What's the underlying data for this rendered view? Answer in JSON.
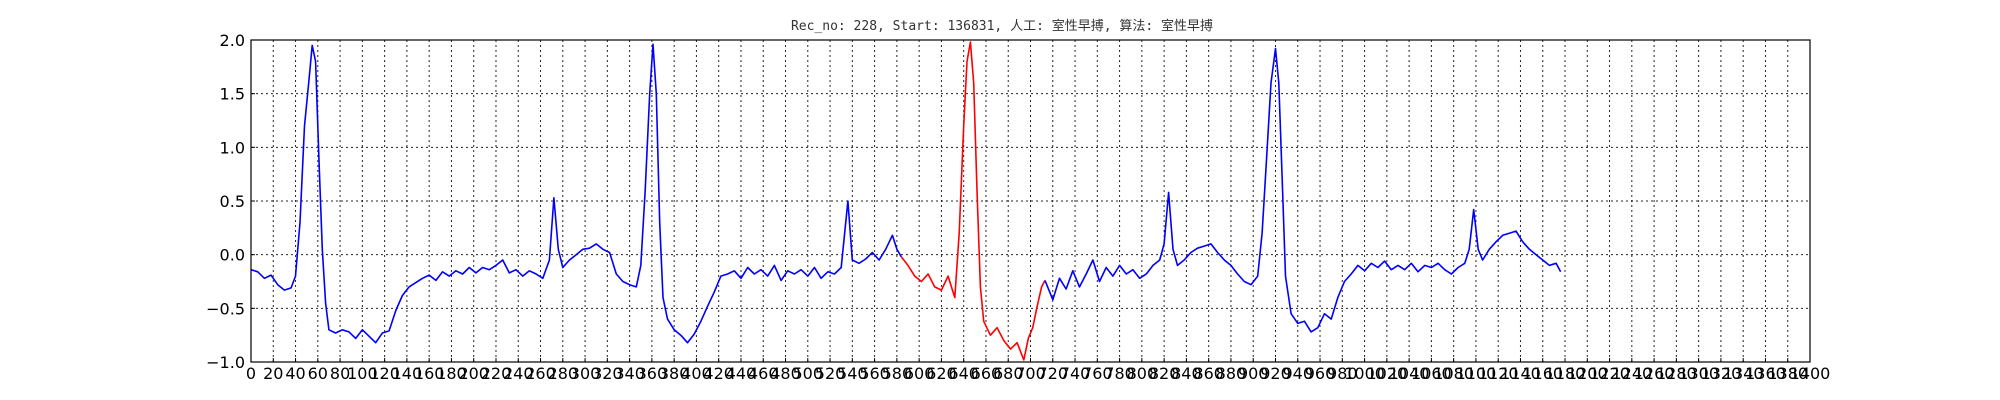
{
  "chart_data": {
    "type": "line",
    "title": "Rec_no: 228, Start: 136831, 人工: 室性早搏, 算法: 室性早搏",
    "xlim": [
      0,
      1400
    ],
    "ylim": [
      -1.0,
      2.0
    ],
    "grid": true,
    "y_ticks": [
      -1.0,
      -0.5,
      0.0,
      0.5,
      1.0,
      1.5,
      2.0
    ],
    "y_tick_labels": [
      "−1.0",
      "−0.5",
      "0.0",
      "0.5",
      "1.0",
      "1.5",
      "2.0"
    ],
    "x_tick_step": 20,
    "x_ticks_shown_from": 0,
    "x_ticks_shown_to": 1400,
    "x_tick_labels_to": 1400,
    "series": [
      {
        "color": "#0000ff",
        "points": [
          [
            0,
            -0.14
          ],
          [
            6,
            -0.16
          ],
          [
            12,
            -0.22
          ],
          [
            18,
            -0.19
          ],
          [
            24,
            -0.28
          ],
          [
            30,
            -0.33
          ],
          [
            36,
            -0.31
          ],
          [
            40,
            -0.2
          ],
          [
            44,
            0.3
          ],
          [
            48,
            1.2
          ],
          [
            52,
            1.62
          ],
          [
            55,
            1.95
          ],
          [
            58,
            1.8
          ],
          [
            61,
            0.9
          ],
          [
            64,
            0.05
          ],
          [
            67,
            -0.45
          ],
          [
            70,
            -0.7
          ],
          [
            76,
            -0.73
          ],
          [
            82,
            -0.7
          ],
          [
            88,
            -0.72
          ],
          [
            94,
            -0.78
          ],
          [
            100,
            -0.7
          ],
          [
            106,
            -0.76
          ],
          [
            112,
            -0.82
          ],
          [
            118,
            -0.73
          ],
          [
            124,
            -0.71
          ],
          [
            130,
            -0.52
          ],
          [
            136,
            -0.38
          ],
          [
            142,
            -0.3
          ],
          [
            148,
            -0.26
          ],
          [
            154,
            -0.22
          ],
          [
            160,
            -0.19
          ],
          [
            166,
            -0.24
          ],
          [
            172,
            -0.16
          ],
          [
            178,
            -0.2
          ],
          [
            184,
            -0.15
          ],
          [
            190,
            -0.18
          ],
          [
            196,
            -0.12
          ],
          [
            202,
            -0.17
          ],
          [
            208,
            -0.12
          ],
          [
            214,
            -0.14
          ],
          [
            220,
            -0.1
          ],
          [
            226,
            -0.05
          ],
          [
            232,
            -0.17
          ],
          [
            238,
            -0.14
          ],
          [
            244,
            -0.2
          ],
          [
            250,
            -0.15
          ],
          [
            256,
            -0.18
          ],
          [
            262,
            -0.22
          ],
          [
            268,
            -0.05
          ],
          [
            272,
            0.53
          ],
          [
            276,
            0.05
          ],
          [
            280,
            -0.12
          ],
          [
            286,
            -0.05
          ],
          [
            292,
            0.0
          ],
          [
            298,
            0.05
          ],
          [
            304,
            0.06
          ],
          [
            310,
            0.1
          ],
          [
            316,
            0.05
          ],
          [
            322,
            0.02
          ],
          [
            328,
            -0.18
          ],
          [
            334,
            -0.25
          ],
          [
            340,
            -0.28
          ],
          [
            346,
            -0.3
          ],
          [
            350,
            -0.1
          ],
          [
            354,
            0.6
          ],
          [
            358,
            1.5
          ],
          [
            361,
            1.96
          ],
          [
            364,
            1.5
          ],
          [
            367,
            0.3
          ],
          [
            370,
            -0.4
          ],
          [
            374,
            -0.6
          ],
          [
            380,
            -0.7
          ],
          [
            386,
            -0.75
          ],
          [
            392,
            -0.82
          ],
          [
            398,
            -0.74
          ],
          [
            404,
            -0.62
          ],
          [
            410,
            -0.48
          ],
          [
            416,
            -0.35
          ],
          [
            422,
            -0.2
          ],
          [
            428,
            -0.18
          ],
          [
            434,
            -0.15
          ],
          [
            440,
            -0.22
          ],
          [
            446,
            -0.12
          ],
          [
            452,
            -0.18
          ],
          [
            458,
            -0.14
          ],
          [
            464,
            -0.2
          ],
          [
            470,
            -0.1
          ],
          [
            476,
            -0.24
          ],
          [
            482,
            -0.15
          ],
          [
            488,
            -0.18
          ],
          [
            494,
            -0.14
          ],
          [
            500,
            -0.2
          ],
          [
            506,
            -0.12
          ],
          [
            512,
            -0.22
          ],
          [
            518,
            -0.16
          ],
          [
            524,
            -0.18
          ],
          [
            530,
            -0.12
          ],
          [
            536,
            0.5
          ],
          [
            540,
            -0.05
          ],
          [
            546,
            -0.08
          ],
          [
            552,
            -0.04
          ],
          [
            558,
            0.02
          ],
          [
            564,
            -0.05
          ],
          [
            570,
            0.05
          ],
          [
            576,
            0.18
          ],
          [
            580,
            0.05
          ],
          [
            584,
            -0.02
          ]
        ]
      },
      {
        "color": "#ff0000",
        "points": [
          [
            584,
            -0.02
          ],
          [
            590,
            -0.1
          ],
          [
            596,
            -0.2
          ],
          [
            602,
            -0.25
          ],
          [
            608,
            -0.18
          ],
          [
            614,
            -0.3
          ],
          [
            620,
            -0.33
          ],
          [
            626,
            -0.2
          ],
          [
            632,
            -0.4
          ],
          [
            636,
            0.2
          ],
          [
            640,
            1.2
          ],
          [
            643,
            1.8
          ],
          [
            646,
            1.98
          ],
          [
            649,
            1.6
          ],
          [
            652,
            0.6
          ],
          [
            655,
            -0.3
          ],
          [
            658,
            -0.62
          ],
          [
            664,
            -0.75
          ],
          [
            670,
            -0.68
          ],
          [
            676,
            -0.8
          ],
          [
            682,
            -0.88
          ],
          [
            688,
            -0.82
          ],
          [
            694,
            -0.98
          ],
          [
            698,
            -0.78
          ],
          [
            702,
            -0.68
          ],
          [
            706,
            -0.48
          ],
          [
            710,
            -0.3
          ],
          [
            713,
            -0.24
          ]
        ]
      },
      {
        "color": "#0000ff",
        "points": [
          [
            713,
            -0.24
          ],
          [
            720,
            -0.42
          ],
          [
            726,
            -0.22
          ],
          [
            732,
            -0.32
          ],
          [
            738,
            -0.15
          ],
          [
            744,
            -0.3
          ],
          [
            750,
            -0.18
          ],
          [
            756,
            -0.05
          ],
          [
            762,
            -0.25
          ],
          [
            768,
            -0.12
          ],
          [
            774,
            -0.2
          ],
          [
            780,
            -0.1
          ],
          [
            786,
            -0.18
          ],
          [
            792,
            -0.14
          ],
          [
            798,
            -0.22
          ],
          [
            804,
            -0.18
          ],
          [
            810,
            -0.1
          ],
          [
            816,
            -0.05
          ],
          [
            820,
            0.1
          ],
          [
            824,
            0.58
          ],
          [
            828,
            0.05
          ],
          [
            832,
            -0.1
          ],
          [
            838,
            -0.05
          ],
          [
            844,
            0.02
          ],
          [
            850,
            0.06
          ],
          [
            856,
            0.08
          ],
          [
            862,
            0.1
          ],
          [
            868,
            0.02
          ],
          [
            874,
            -0.05
          ],
          [
            880,
            -0.1
          ],
          [
            886,
            -0.18
          ],
          [
            892,
            -0.25
          ],
          [
            898,
            -0.28
          ],
          [
            904,
            -0.2
          ],
          [
            908,
            0.2
          ],
          [
            912,
            0.9
          ],
          [
            916,
            1.6
          ],
          [
            920,
            1.92
          ],
          [
            923,
            1.6
          ],
          [
            926,
            0.7
          ],
          [
            929,
            -0.2
          ],
          [
            934,
            -0.55
          ],
          [
            940,
            -0.64
          ],
          [
            946,
            -0.62
          ],
          [
            952,
            -0.72
          ],
          [
            958,
            -0.68
          ],
          [
            964,
            -0.55
          ],
          [
            970,
            -0.6
          ],
          [
            976,
            -0.4
          ],
          [
            982,
            -0.25
          ],
          [
            988,
            -0.18
          ],
          [
            994,
            -0.1
          ],
          [
            1000,
            -0.15
          ],
          [
            1006,
            -0.08
          ],
          [
            1012,
            -0.12
          ],
          [
            1018,
            -0.06
          ],
          [
            1024,
            -0.14
          ],
          [
            1030,
            -0.1
          ],
          [
            1036,
            -0.14
          ],
          [
            1042,
            -0.08
          ],
          [
            1048,
            -0.16
          ],
          [
            1054,
            -0.1
          ],
          [
            1060,
            -0.12
          ],
          [
            1066,
            -0.08
          ],
          [
            1072,
            -0.14
          ],
          [
            1078,
            -0.18
          ],
          [
            1084,
            -0.12
          ],
          [
            1090,
            -0.08
          ],
          [
            1094,
            0.05
          ],
          [
            1098,
            0.42
          ],
          [
            1102,
            0.05
          ],
          [
            1106,
            -0.05
          ],
          [
            1112,
            0.05
          ],
          [
            1118,
            0.12
          ],
          [
            1124,
            0.18
          ],
          [
            1130,
            0.2
          ],
          [
            1136,
            0.22
          ],
          [
            1142,
            0.12
          ],
          [
            1148,
            0.05
          ],
          [
            1154,
            0.0
          ],
          [
            1160,
            -0.05
          ],
          [
            1166,
            -0.1
          ],
          [
            1172,
            -0.08
          ],
          [
            1176,
            -0.16
          ]
        ]
      }
    ]
  }
}
